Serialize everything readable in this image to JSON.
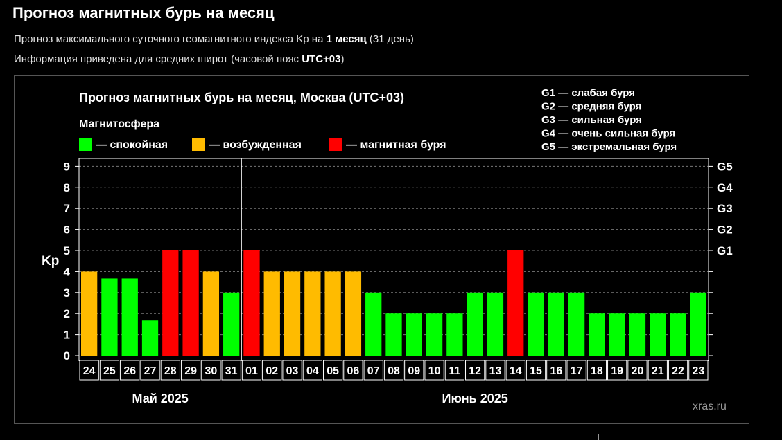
{
  "page": {
    "title": "Прогноз магнитных бурь на месяц",
    "line1": {
      "prefix": "Прогноз максимального суточного геомагнитного индекса Kp на ",
      "bold": "1 месяц",
      "suffix": " (31 день)"
    },
    "line2": {
      "prefix": "Информация приведена для средних широт (часовой пояс ",
      "bold": "UTC+03",
      "suffix": ")"
    }
  },
  "chart_data": {
    "type": "bar",
    "title": "Прогноз магнитных бурь на месяц, Москва (UTC+03)",
    "legend_title": "Магнитосфера",
    "legend": [
      {
        "label": "— спокойная",
        "color": "#00ff00"
      },
      {
        "label": "— возбужденная",
        "color": "#ffbb00"
      },
      {
        "label": "— магнитная буря",
        "color": "#ff0000"
      }
    ],
    "storm_levels": [
      "G1 — слабая буря",
      "G2 — средняя буря",
      "G3 — сильная буря",
      "G4 — очень сильная буря",
      "G5 — экстремальная буря"
    ],
    "ylabel": "Kp",
    "ylim": [
      0,
      9
    ],
    "yticks": [
      "0",
      "1",
      "2",
      "3",
      "4",
      "5",
      "6",
      "7",
      "8",
      "9"
    ],
    "right_axis_labels": [
      {
        "label": "G1",
        "kp": 5
      },
      {
        "label": "G2",
        "kp": 6
      },
      {
        "label": "G3",
        "kp": 7
      },
      {
        "label": "G4",
        "kp": 8
      },
      {
        "label": "G5",
        "kp": 9
      }
    ],
    "categories": [
      "24",
      "25",
      "26",
      "27",
      "28",
      "29",
      "30",
      "31",
      "01",
      "02",
      "03",
      "04",
      "05",
      "06",
      "07",
      "08",
      "09",
      "10",
      "11",
      "12",
      "13",
      "14",
      "15",
      "16",
      "17",
      "18",
      "19",
      "20",
      "21",
      "22",
      "23"
    ],
    "values": [
      4,
      3.67,
      3.67,
      1.67,
      5,
      5,
      4,
      3,
      5,
      4,
      4,
      4,
      4,
      4,
      3,
      2,
      2,
      2,
      2,
      3,
      3,
      5,
      3,
      3,
      3,
      2,
      2,
      2,
      2,
      2,
      3
    ],
    "status": [
      "excited",
      "quiet",
      "quiet",
      "quiet",
      "storm",
      "storm",
      "excited",
      "quiet",
      "storm",
      "excited",
      "excited",
      "excited",
      "excited",
      "excited",
      "quiet",
      "quiet",
      "quiet",
      "quiet",
      "quiet",
      "quiet",
      "quiet",
      "storm",
      "quiet",
      "quiet",
      "quiet",
      "quiet",
      "quiet",
      "quiet",
      "quiet",
      "quiet",
      "quiet"
    ],
    "colors": {
      "quiet": "#00ff00",
      "excited": "#ffbb00",
      "storm": "#ff0000"
    },
    "months": [
      {
        "label": "Май 2025",
        "first_index": 0,
        "count": 8
      },
      {
        "label": "Июнь 2025",
        "first_index": 8,
        "count": 23
      }
    ],
    "grid": true,
    "watermark": "xras.ru"
  }
}
